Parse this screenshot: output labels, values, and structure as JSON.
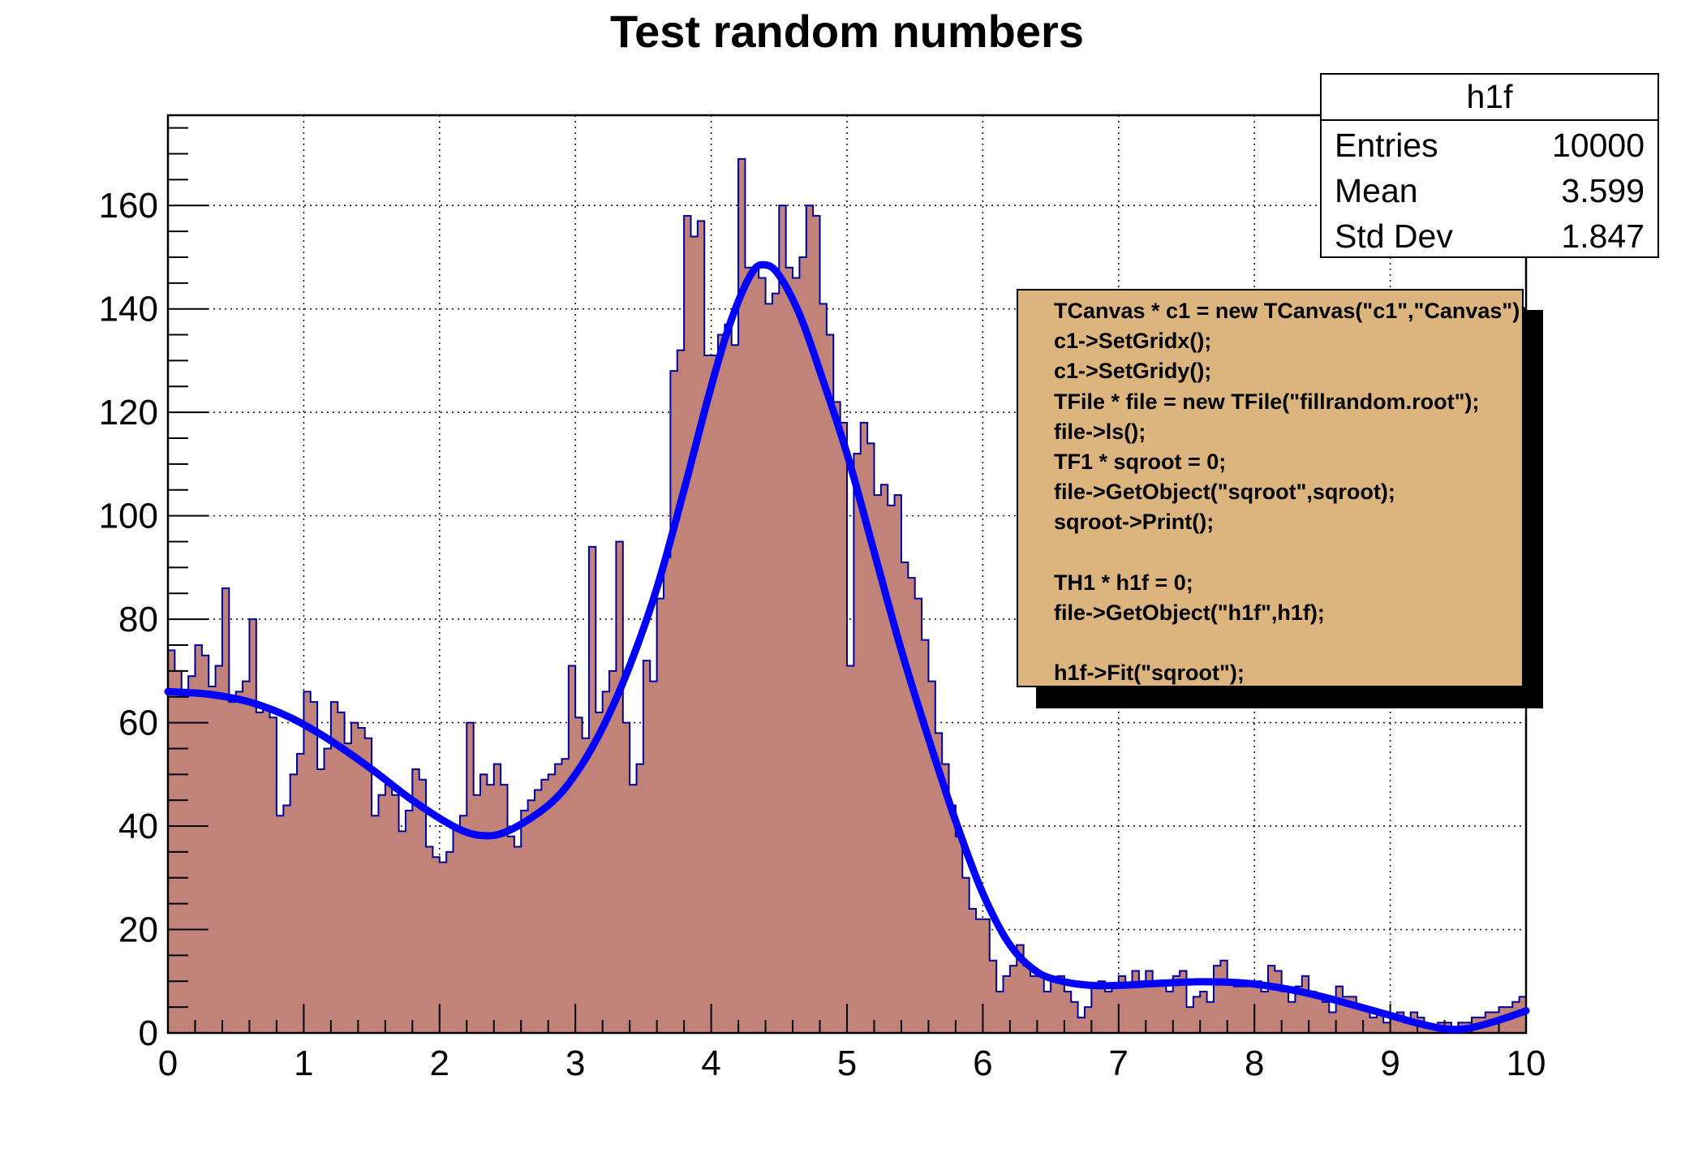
{
  "title": "Test random numbers",
  "colors": {
    "hist_fill": "#c1827a",
    "hist_line": "#00009a",
    "fit_line": "#0000ff",
    "grid": "#000000",
    "frame": "#000000",
    "pave_fill": "#dcb47e",
    "pave_shadow": "#000000",
    "stats_fill": "#ffffff",
    "text": "#000000"
  },
  "stats_box": {
    "title": "h1f",
    "rows": [
      {
        "label": "Entries",
        "value": "10000"
      },
      {
        "label": "Mean",
        "value": "3.599"
      },
      {
        "label": "Std Dev",
        "value": "1.847"
      }
    ]
  },
  "code_box": {
    "lines": [
      "TCanvas * c1 = new TCanvas(\"c1\",\"Canvas\");",
      "c1->SetGridx();",
      "c1->SetGridy();",
      "TFile * file = new TFile(\"fillrandom.root\");",
      "file->ls();",
      "TF1 * sqroot = 0;",
      "file->GetObject(\"sqroot\",sqroot);",
      "sqroot->Print();",
      "",
      "TH1 * h1f = 0;",
      "file->GetObject(\"h1f\",h1f);",
      "",
      "h1f->Fit(\"sqroot\");"
    ]
  },
  "axes": {
    "x": {
      "min": 0,
      "max": 10,
      "major_step": 1,
      "minor_step": 0.2,
      "labels": [
        "0",
        "1",
        "2",
        "3",
        "4",
        "5",
        "6",
        "7",
        "8",
        "9",
        "10"
      ]
    },
    "y": {
      "min": 0,
      "max": 177.45,
      "major_step": 20,
      "minor_step": 5,
      "labels": [
        "0",
        "20",
        "40",
        "60",
        "80",
        "100",
        "120",
        "140",
        "160"
      ]
    }
  },
  "chart_data": [
    {
      "type": "bar",
      "name": "h1f",
      "title": "Test random numbers",
      "xlabel": "",
      "ylabel": "",
      "xlim": [
        0,
        10
      ],
      "ylim": [
        0,
        177.45
      ],
      "grid": true,
      "bin_start": 0,
      "bin_width": 0.05,
      "values": [
        74,
        70,
        65,
        69,
        75,
        73,
        67,
        71,
        86,
        64,
        66,
        68,
        80,
        62,
        63,
        61,
        42,
        44,
        50,
        54,
        66,
        64,
        51,
        55,
        64,
        62,
        56,
        60,
        59,
        57,
        42,
        46,
        48,
        46,
        39,
        43,
        51,
        49,
        36,
        34,
        33,
        35,
        40,
        42,
        60,
        46,
        50,
        48,
        52,
        48,
        38,
        36,
        43,
        45,
        47,
        49,
        50,
        52,
        53,
        71,
        61,
        57,
        94,
        62,
        66,
        70,
        95,
        60,
        48,
        52,
        72,
        68,
        84,
        92,
        128,
        132,
        158,
        154,
        157,
        131,
        131,
        135,
        137,
        133,
        169,
        148,
        148,
        146,
        141,
        143,
        160,
        148,
        146,
        150,
        160,
        158,
        141,
        135,
        122,
        118,
        71,
        112,
        118,
        114,
        104,
        106,
        102,
        104,
        91,
        88,
        84,
        76,
        68,
        58,
        52,
        44,
        38,
        30,
        24,
        22,
        22,
        14,
        8,
        11,
        13,
        17,
        13,
        11,
        11,
        8,
        10,
        11,
        8,
        6,
        3,
        5,
        9,
        10,
        8,
        9,
        11,
        9,
        12,
        10,
        12,
        10,
        10,
        8,
        11,
        12,
        5,
        7,
        8,
        6,
        13,
        14,
        10,
        9,
        9,
        10,
        10,
        8,
        13,
        12,
        8,
        6,
        9,
        11,
        8,
        7,
        6,
        4,
        9,
        7,
        7,
        5,
        5,
        3,
        4,
        2,
        3,
        4,
        2,
        4,
        3,
        1,
        1,
        2,
        2,
        1,
        2,
        2,
        3,
        3,
        4,
        4,
        5,
        5,
        6,
        7
      ]
    },
    {
      "type": "line",
      "name": "sqroot fit",
      "points": [
        [
          0,
          66
        ],
        [
          0.3,
          65.5
        ],
        [
          0.6,
          64
        ],
        [
          0.9,
          61
        ],
        [
          1.2,
          56.5
        ],
        [
          1.5,
          51
        ],
        [
          1.8,
          45
        ],
        [
          2.1,
          40
        ],
        [
          2.3,
          38.2
        ],
        [
          2.5,
          39
        ],
        [
          2.8,
          44
        ],
        [
          3.0,
          50
        ],
        [
          3.2,
          59
        ],
        [
          3.4,
          71
        ],
        [
          3.6,
          86
        ],
        [
          3.8,
          105
        ],
        [
          4.0,
          125
        ],
        [
          4.15,
          138
        ],
        [
          4.3,
          147
        ],
        [
          4.4,
          148.5
        ],
        [
          4.5,
          146.5
        ],
        [
          4.65,
          139
        ],
        [
          4.8,
          128
        ],
        [
          5.0,
          112
        ],
        [
          5.2,
          93
        ],
        [
          5.4,
          74
        ],
        [
          5.6,
          57
        ],
        [
          5.8,
          41
        ],
        [
          6.0,
          27
        ],
        [
          6.2,
          17
        ],
        [
          6.4,
          11.8
        ],
        [
          6.6,
          9.9
        ],
        [
          6.8,
          9.2
        ],
        [
          7.0,
          9.2
        ],
        [
          7.3,
          9.6
        ],
        [
          7.6,
          9.9
        ],
        [
          7.9,
          9.7
        ],
        [
          8.1,
          9.1
        ],
        [
          8.3,
          8.2
        ],
        [
          8.5,
          7
        ],
        [
          8.7,
          5.6
        ],
        [
          9.0,
          3.4
        ],
        [
          9.2,
          1.9
        ],
        [
          9.4,
          0.8
        ],
        [
          9.55,
          0.8
        ],
        [
          9.7,
          1.7
        ],
        [
          9.85,
          2.9
        ],
        [
          10,
          4.3
        ]
      ]
    }
  ]
}
